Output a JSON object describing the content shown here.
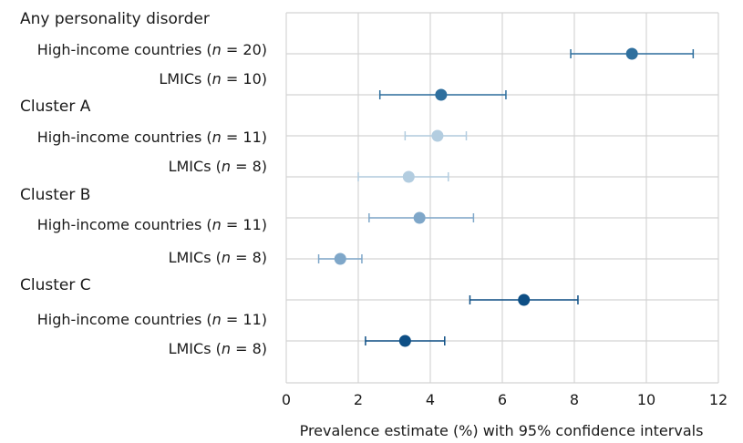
{
  "chart_data": {
    "type": "scatter",
    "orientation": "horizontal",
    "xlabel": "Prevalence estimate (%) with 95% confidence intervals",
    "xlim": [
      0,
      12
    ],
    "xticks": [
      0,
      2,
      4,
      6,
      8,
      10,
      12
    ],
    "grid": true,
    "groups": [
      {
        "title": "Any personality disorder",
        "rows": [
          {
            "label": "High-income countries (n = 20)",
            "estimate": 9.6,
            "ci_low": 7.9,
            "ci_high": 11.3,
            "color": "#2e6f9e"
          },
          {
            "label": "LMICs (n = 10)",
            "estimate": 4.3,
            "ci_low": 2.6,
            "ci_high": 6.1,
            "color": "#2e6f9e"
          }
        ]
      },
      {
        "title": "Cluster A",
        "rows": [
          {
            "label": "High-income countries (n = 11)",
            "estimate": 4.2,
            "ci_low": 3.3,
            "ci_high": 5.0,
            "color": "#b3cde0"
          },
          {
            "label": "LMICs (n = 8)",
            "estimate": 3.4,
            "ci_low": 2.0,
            "ci_high": 4.5,
            "color": "#b3cde0"
          }
        ]
      },
      {
        "title": "Cluster B",
        "rows": [
          {
            "label": "High-income countries (n = 11)",
            "estimate": 3.7,
            "ci_low": 2.3,
            "ci_high": 5.2,
            "color": "#7fa7c9"
          },
          {
            "label": "LMICs (n = 8)",
            "estimate": 1.5,
            "ci_low": 0.9,
            "ci_high": 2.1,
            "color": "#7fa7c9"
          }
        ]
      },
      {
        "title": "Cluster C",
        "rows": [
          {
            "label": "High-income countries (n = 11)",
            "estimate": 6.6,
            "ci_low": 5.1,
            "ci_high": 8.1,
            "color": "#0e4f85"
          },
          {
            "label": "LMICs (n = 8)",
            "estimate": 3.3,
            "ci_low": 2.2,
            "ci_high": 4.4,
            "color": "#0e4f85"
          }
        ]
      }
    ]
  }
}
